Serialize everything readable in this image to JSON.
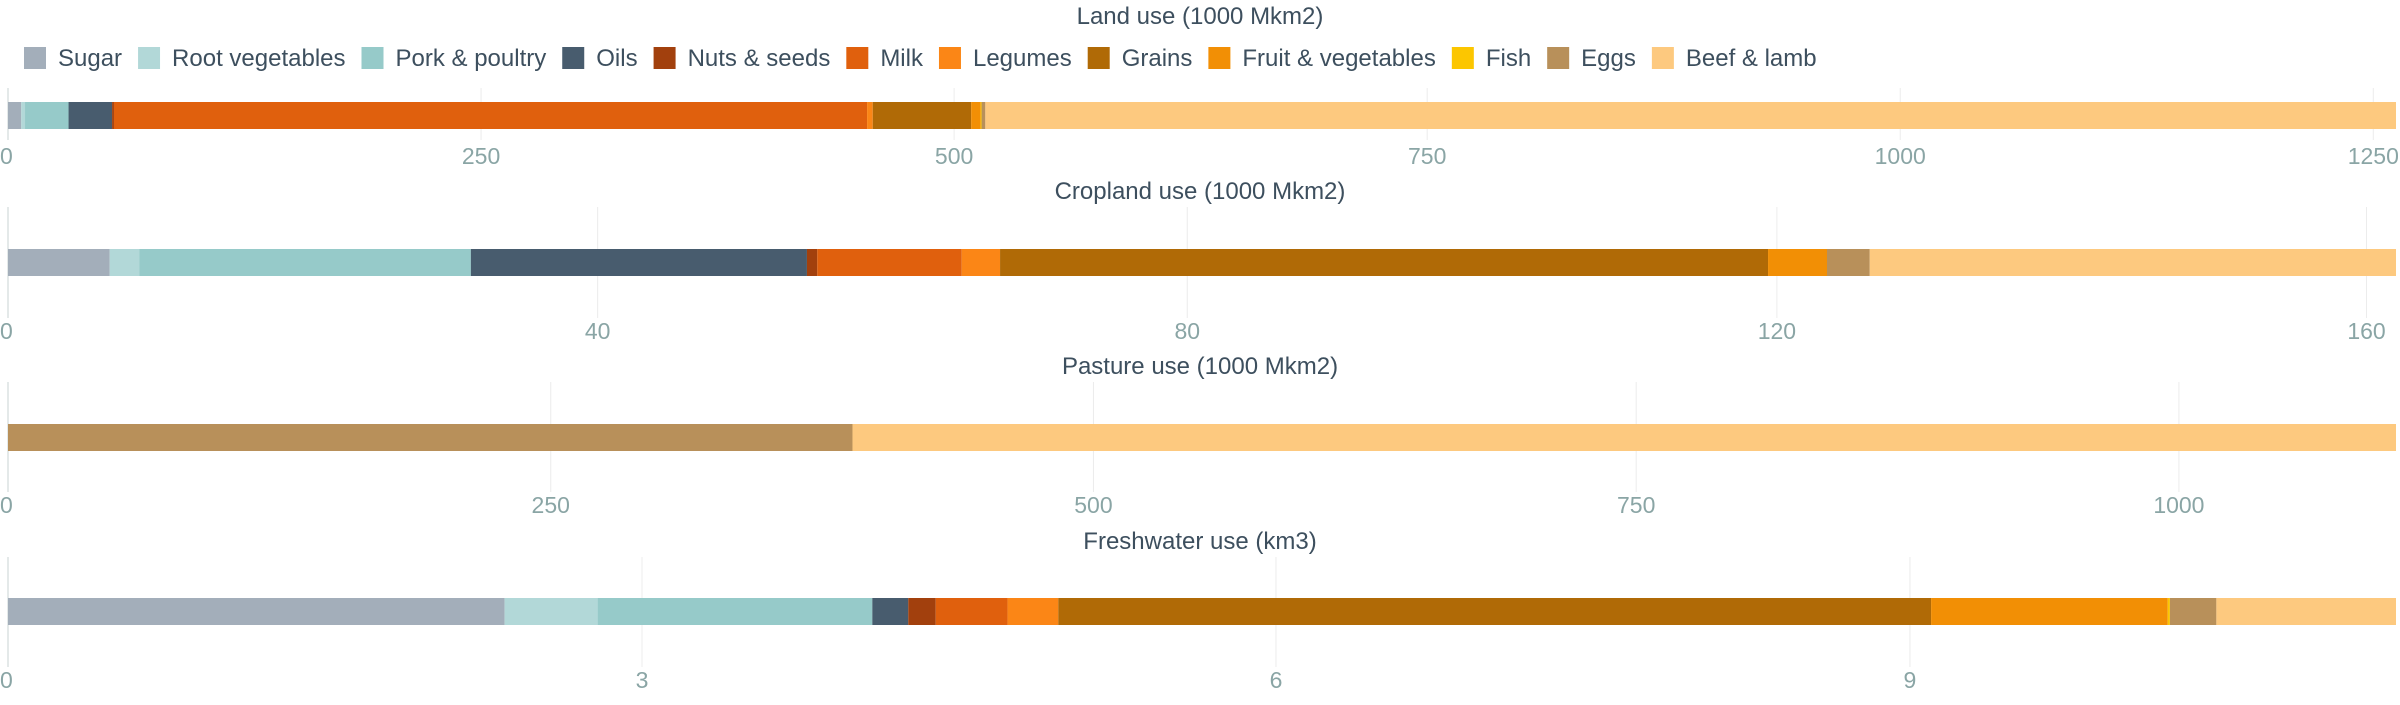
{
  "colors": {
    "Sugar": "#a3aeba",
    "Root vegetables": "#b2d8d8",
    "Pork & poultry": "#96cac9",
    "Oils": "#485c6e",
    "Nuts & seeds": "#a2400d",
    "Milk": "#e0600d",
    "Legumes": "#fb8616",
    "Grains": "#b06a06",
    "Fruit & vegetables": "#f28f05",
    "Fish": "#fcc600",
    "Eggs": "#b8905a",
    "Beef & lamb": "#fdc97f"
  },
  "chart_data": {
    "type": "bar",
    "orientation": "horizontal-stacked",
    "legend": {
      "position": "top",
      "entries": [
        "Sugar",
        "Root vegetables",
        "Pork & poultry",
        "Oils",
        "Nuts & seeds",
        "Milk",
        "Legumes",
        "Grains",
        "Fruit & vegetables",
        "Fish",
        "Eggs",
        "Beef & lamb"
      ]
    },
    "panels": [
      {
        "title": "Land use (1000 Mkm2)",
        "xlim": [
          0,
          1262
        ],
        "ticks": [
          0,
          250,
          500,
          750,
          1000,
          1250
        ],
        "tick_labels": [
          "0",
          "250",
          "500",
          "750",
          "1000",
          "1250"
        ],
        "segments": [
          {
            "name": "Sugar",
            "value": 7
          },
          {
            "name": "Root vegetables",
            "value": 2
          },
          {
            "name": "Pork & poultry",
            "value": 23
          },
          {
            "name": "Oils",
            "value": 23
          },
          {
            "name": "Nuts & seeds",
            "value": 1
          },
          {
            "name": "Milk",
            "value": 398
          },
          {
            "name": "Legumes",
            "value": 3
          },
          {
            "name": "Grains",
            "value": 52
          },
          {
            "name": "Fruit & vegetables",
            "value": 5
          },
          {
            "name": "Fish",
            "value": 0.5
          },
          {
            "name": "Eggs",
            "value": 2
          },
          {
            "name": "Beef & lamb",
            "value": 745.5
          }
        ]
      },
      {
        "title": "Cropland use (1000 Mkm2)",
        "xlim": [
          0,
          162
        ],
        "ticks": [
          0,
          40,
          80,
          120,
          160
        ],
        "tick_labels": [
          "0",
          "40",
          "80",
          "120",
          "160"
        ],
        "segments": [
          {
            "name": "Sugar",
            "value": 6.9
          },
          {
            "name": "Root vegetables",
            "value": 2
          },
          {
            "name": "Pork & poultry",
            "value": 22.5
          },
          {
            "name": "Oils",
            "value": 22.8
          },
          {
            "name": "Nuts & seeds",
            "value": 0.7
          },
          {
            "name": "Milk",
            "value": 9.8
          },
          {
            "name": "Legumes",
            "value": 2.6
          },
          {
            "name": "Grains",
            "value": 52.1
          },
          {
            "name": "Fruit & vegetables",
            "value": 4
          },
          {
            "name": "Fish",
            "value": 0
          },
          {
            "name": "Eggs",
            "value": 2.9
          },
          {
            "name": "Beef & lamb",
            "value": 35.7
          }
        ]
      },
      {
        "title": "Pasture use (1000 Mkm2)",
        "xlim": [
          0,
          1100
        ],
        "ticks": [
          0,
          250,
          500,
          750,
          1000
        ],
        "tick_labels": [
          "0",
          "250",
          "500",
          "750",
          "1000"
        ],
        "segments": [
          {
            "name": "Eggs",
            "value": 389
          },
          {
            "name": "Beef & lamb",
            "value": 711
          }
        ]
      },
      {
        "title": "Freshwater use (km3)",
        "xlim": [
          0,
          11.3
        ],
        "ticks": [
          0,
          3,
          6,
          9
        ],
        "tick_labels": [
          "0",
          "3",
          "6",
          "9"
        ],
        "segments": [
          {
            "name": "Sugar",
            "value": 2.35
          },
          {
            "name": "Root vegetables",
            "value": 0.44
          },
          {
            "name": "Pork & poultry",
            "value": 1.3
          },
          {
            "name": "Oils",
            "value": 0.17
          },
          {
            "name": "Nuts & seeds",
            "value": 0.13
          },
          {
            "name": "Milk",
            "value": 0.34
          },
          {
            "name": "Legumes",
            "value": 0.24
          },
          {
            "name": "Grains",
            "value": 4.13
          },
          {
            "name": "Fruit & vegetables",
            "value": 1.12
          },
          {
            "name": "Fish",
            "value": 0.01
          },
          {
            "name": "Eggs",
            "value": 0.22
          },
          {
            "name": "Beef & lamb",
            "value": 0.85
          }
        ]
      }
    ]
  }
}
